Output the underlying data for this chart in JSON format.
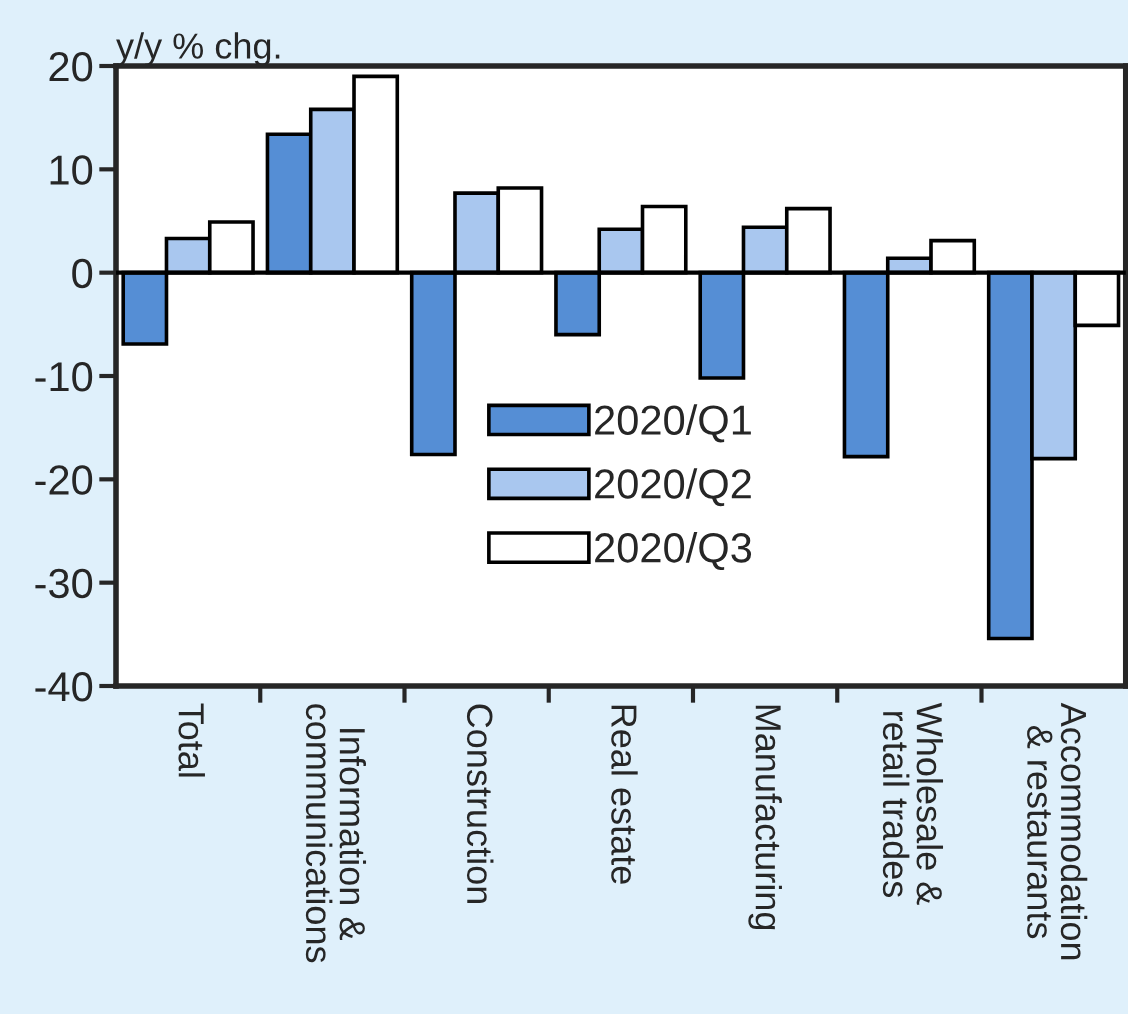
{
  "chart_data": {
    "type": "bar",
    "ylabel": "y/y % chg.",
    "categories": [
      "Total",
      "Information &\ncommunications",
      "Construction",
      "Real estate",
      "Manufacturing",
      "Wholesale &\nretail trades",
      "Accommodation\n& restaurants"
    ],
    "series": [
      {
        "name": "2020/Q1",
        "color": "#558ed5",
        "values": [
          -6.9,
          13.4,
          -17.6,
          -6.0,
          -10.2,
          -17.8,
          -35.4
        ]
      },
      {
        "name": "2020/Q2",
        "color": "#a9c7ef",
        "values": [
          3.3,
          15.8,
          7.7,
          4.2,
          4.4,
          1.4,
          -18.0
        ]
      },
      {
        "name": "2020/Q3",
        "color": "#ffffff",
        "values": [
          4.9,
          19.0,
          8.2,
          6.4,
          6.2,
          3.1,
          -5.1
        ]
      }
    ],
    "ylim": [
      -40,
      20
    ],
    "yticks": [
      -40,
      -30,
      -20,
      -10,
      0,
      10,
      20
    ],
    "legend": "center"
  }
}
